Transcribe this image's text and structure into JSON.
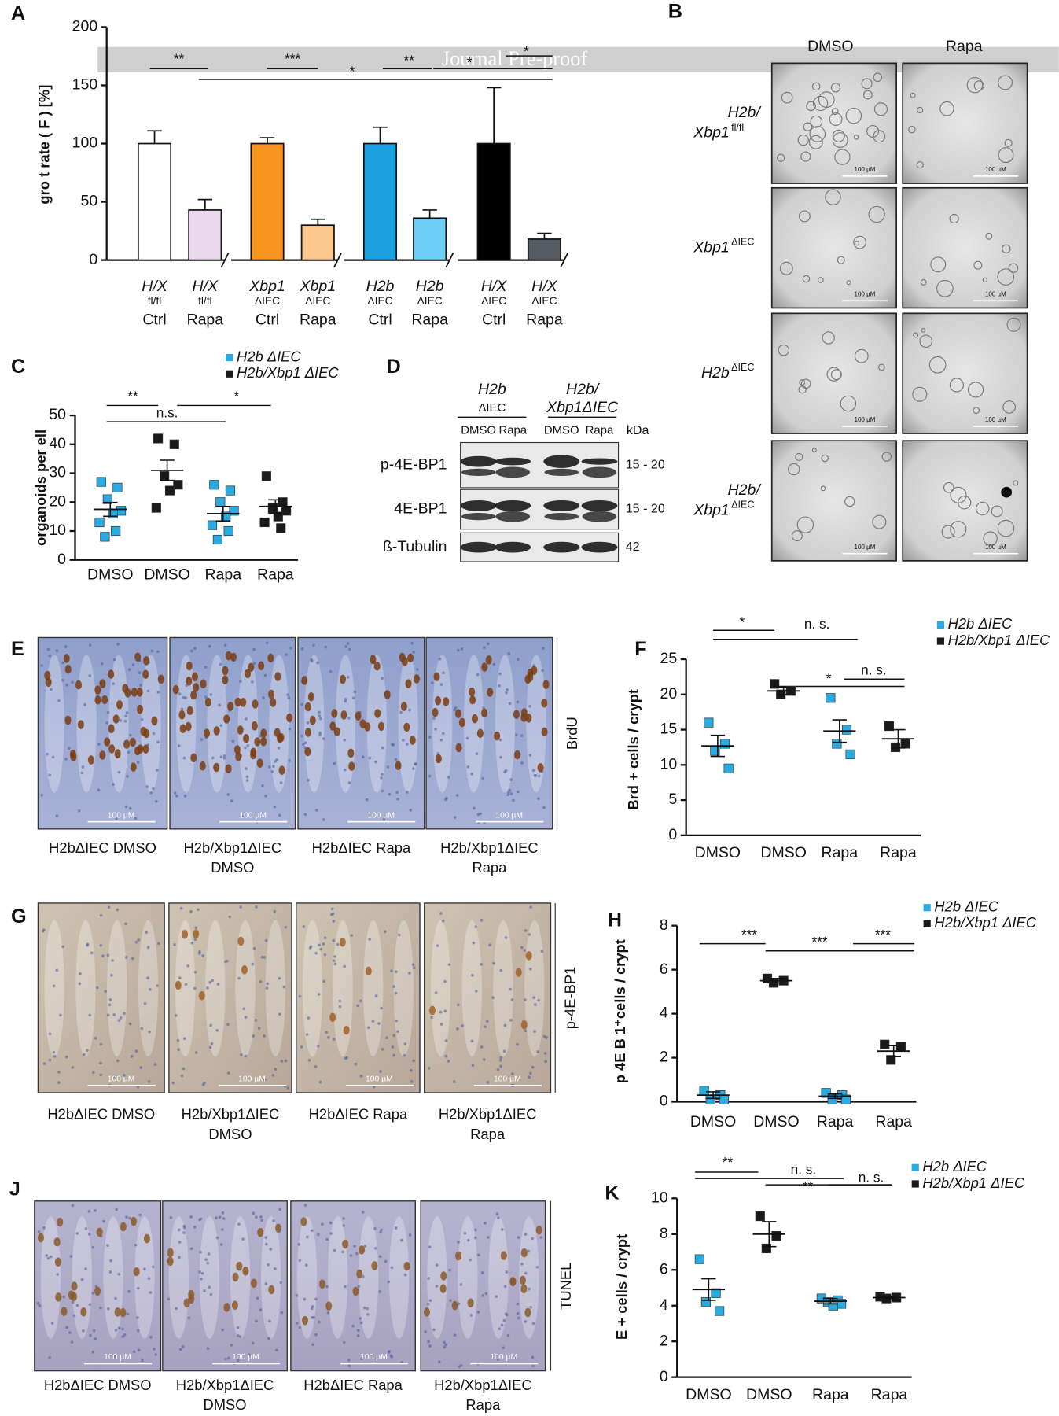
{
  "watermark": "Journal Pre-proof",
  "panel_labels": [
    "A",
    "B",
    "C",
    "D",
    "E",
    "F",
    "G",
    "H",
    "J",
    "K"
  ],
  "chart_data": [
    {
      "type": "bar",
      "ylabel": "gro  t  rate (  F  ) [%]",
      "categories": [
        [
          "H/X",
          "fl/fl",
          "Ctrl"
        ],
        [
          "H/X",
          "fl/fl",
          "Rapa"
        ],
        [
          "Xbp1",
          "ΔIEC",
          "Ctrl"
        ],
        [
          "Xbp1",
          "ΔIEC",
          "Rapa"
        ],
        [
          "H2b",
          "ΔIEC",
          "Ctrl"
        ],
        [
          "H2b",
          "ΔIEC",
          "Rapa"
        ],
        [
          "H/X",
          "ΔIEC",
          "Ctrl"
        ],
        [
          "H/X",
          "ΔIEC",
          "Rapa"
        ]
      ],
      "values": [
        100,
        43,
        100,
        30,
        100,
        36,
        100,
        18
      ],
      "errors": [
        11,
        9,
        5,
        5,
        14,
        7,
        48,
        5
      ],
      "colors": [
        "#ffffff",
        "#ead8ec",
        "#f7941d",
        "#fbc98e",
        "#1ba1e2",
        "#6ccff6",
        "#000000",
        "#555a63"
      ],
      "ylim": [
        0,
        200
      ],
      "yticks": [
        0,
        50,
        100,
        150,
        200
      ],
      "annotations": [
        "**",
        "***",
        "*",
        "**",
        "*",
        "*"
      ]
    },
    {
      "type": "dot",
      "ylabel": "organoids per   ell",
      "categories": [
        "DMSO",
        "DMSO",
        "Rapa",
        "Rapa"
      ],
      "series": [
        {
          "name": "H2b ΔIEC",
          "color": "#29abe2",
          "values": [
            [
              27,
              25,
              21,
              17,
              16,
              13,
              10,
              8
            ],
            null,
            [
              26,
              24,
              20,
              17,
              15,
              12,
              10,
              7
            ],
            null
          ],
          "mean": [
            17.5,
            null,
            16,
            null
          ],
          "sem": [
            2.4,
            null,
            2.5,
            null
          ]
        },
        {
          "name": "H2b/Xbp1 ΔIEC",
          "color": "#1a1a1a",
          "values": [
            null,
            [
              42,
              40,
              29,
              26,
              24,
              18
            ],
            null,
            [
              29,
              20,
              18,
              17,
              15,
              13,
              11
            ]
          ],
          "mean": [
            null,
            31,
            null,
            18.5
          ],
          "sem": [
            null,
            3.5,
            null,
            2.3
          ]
        }
      ],
      "ylim": [
        0,
        50
      ],
      "yticks": [
        0,
        10,
        20,
        30,
        40,
        50
      ],
      "annotations": [
        "**",
        "n.s.",
        "*"
      ]
    },
    {
      "type": "dot",
      "ylabel": "Brd  + cells / crypt",
      "categories": [
        "DMSO",
        "DMSO",
        "Rapa",
        "Rapa"
      ],
      "series": [
        {
          "name": "H2b ΔIEC",
          "color": "#29abe2",
          "values": [
            [
              16,
              13,
              12,
              9.5
            ],
            null,
            [
              19.5,
              15,
              13,
              11.5
            ],
            null
          ],
          "mean": [
            12.7,
            null,
            14.8,
            null
          ],
          "sem": [
            1.5,
            null,
            1.6,
            null
          ]
        },
        {
          "name": "H2b/Xbp1 ΔIEC",
          "color": "#1a1a1a",
          "values": [
            null,
            [
              21.5,
              20.5,
              20
            ],
            null,
            [
              15.5,
              13,
              12.5
            ]
          ],
          "mean": [
            null,
            20.5,
            null,
            13.7
          ],
          "sem": [
            null,
            0.5,
            null,
            1.3
          ]
        }
      ],
      "ylim": [
        0,
        25
      ],
      "yticks": [
        0,
        5,
        10,
        15,
        20,
        25
      ],
      "annotations": [
        "*",
        "n. s.",
        "*",
        "n. s."
      ]
    },
    {
      "type": "dot",
      "ylabel": "p 4E B  1⁺cells / crypt",
      "categories": [
        "DMSO",
        "DMSO",
        "Rapa",
        "Rapa"
      ],
      "series": [
        {
          "name": "H2b ΔIEC",
          "color": "#29abe2",
          "values": [
            [
              0.5,
              0.3,
              0.1,
              0.1
            ],
            null,
            [
              0.4,
              0.3,
              0.1,
              0.1
            ],
            null
          ],
          "mean": [
            0.3,
            null,
            0.25,
            null
          ],
          "sem": [
            0.15,
            null,
            0.1,
            null
          ]
        },
        {
          "name": "H2b/Xbp1 ΔIEC",
          "color": "#1a1a1a",
          "values": [
            null,
            [
              5.6,
              5.5,
              5.4
            ],
            null,
            [
              2.6,
              2.5,
              1.9
            ]
          ],
          "mean": [
            null,
            5.5,
            null,
            2.3
          ],
          "sem": [
            null,
            0.1,
            null,
            0.25
          ]
        }
      ],
      "ylim": [
        0,
        8
      ],
      "yticks": [
        0,
        2,
        4,
        6,
        8
      ],
      "annotations": [
        "***",
        "***",
        "***"
      ]
    },
    {
      "type": "dot",
      "ylabel": "E  + cells / crypt",
      "categories": [
        "DMSO",
        "DMSO",
        "Rapa",
        "Rapa"
      ],
      "series": [
        {
          "name": "H2b ΔIEC",
          "color": "#29abe2",
          "values": [
            [
              6.6,
              4.7,
              4.2,
              3.7
            ],
            null,
            [
              4.4,
              4.3,
              4.2,
              4.1,
              4.0
            ],
            null
          ],
          "mean": [
            4.9,
            null,
            4.25,
            null
          ],
          "sem": [
            0.6,
            null,
            0.15,
            null
          ]
        },
        {
          "name": "H2b/Xbp1 ΔIEC",
          "color": "#1a1a1a",
          "values": [
            null,
            [
              9,
              7.9,
              7.2
            ],
            null,
            [
              4.5,
              4.45,
              4.4
            ]
          ],
          "mean": [
            null,
            8,
            null,
            4.45
          ],
          "sem": [
            null,
            0.7,
            null,
            0.05
          ]
        }
      ],
      "ylim": [
        0,
        10
      ],
      "yticks": [
        0,
        2,
        4,
        6,
        8,
        10
      ],
      "annotations": [
        "**",
        "n. s.",
        "**",
        "n. s."
      ]
    }
  ],
  "organoid_images": {
    "columns": [
      "DMSO",
      "Rapa"
    ],
    "rows": [
      {
        "lines": [
          "H2b/",
          "Xbp1"
        ],
        "sup": "fl/fl"
      },
      {
        "lines": [
          "Xbp1"
        ],
        "sup": "ΔIEC"
      },
      {
        "lines": [
          "H2b"
        ],
        "sup": "ΔIEC"
      },
      {
        "lines": [
          "H2b/",
          "Xbp1"
        ],
        "sup": "ΔIEC"
      }
    ],
    "scale_bar": "100 µM"
  },
  "western_blot": {
    "groups": [
      [
        "H2b",
        "ΔIEC"
      ],
      [
        "H2b/",
        "Xbp1ΔIEC"
      ]
    ],
    "lanes": [
      "DMSO",
      "Rapa",
      "DMSO",
      "Rapa"
    ],
    "kda_header": "kDa",
    "rows": [
      {
        "protein": "p-4E-BP1",
        "kda": "15 - 20"
      },
      {
        "protein": "4E-BP1",
        "kda": "15 - 20"
      },
      {
        "protein": "ß-Tubulin",
        "kda": "42"
      }
    ]
  },
  "histology": [
    {
      "stain": "BrdU",
      "labels": [
        [
          "H2bΔIEC DMSO"
        ],
        [
          "H2b/Xbp1ΔIEC",
          "DMSO"
        ],
        [
          "H2bΔIEC Rapa"
        ],
        [
          "H2b/Xbp1ΔIEC",
          "Rapa"
        ]
      ]
    },
    {
      "stain": "p-4E-BP1",
      "labels": [
        [
          "H2bΔIEC DMSO"
        ],
        [
          "H2b/Xbp1ΔIEC",
          "DMSO"
        ],
        [
          "H2bΔIEC Rapa"
        ],
        [
          "H2b/Xbp1ΔIEC",
          "Rapa"
        ]
      ]
    },
    {
      "stain": "TUNEL",
      "labels": [
        [
          "H2bΔIEC DMSO"
        ],
        [
          "H2b/Xbp1ΔIEC",
          "DMSO"
        ],
        [
          "H2bΔIEC Rapa"
        ],
        [
          "H2b/Xbp1ΔIEC",
          "Rapa"
        ]
      ]
    }
  ]
}
